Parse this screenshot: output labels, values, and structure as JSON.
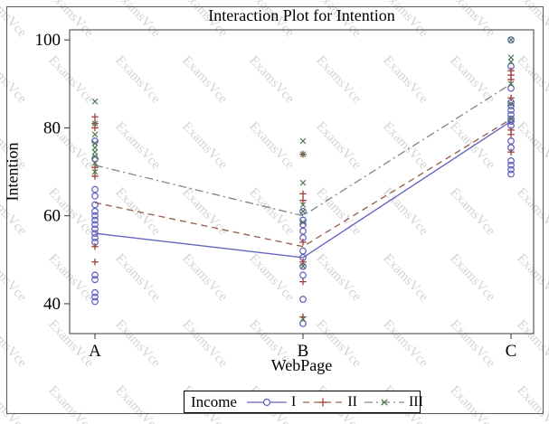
{
  "watermark": {
    "text": "ExamsVce",
    "color": "#c9c9c9"
  },
  "chart_data": {
    "type": "line",
    "title": "Interaction Plot for Intention",
    "xlabel": "WebPage",
    "ylabel": "Intention",
    "categories": [
      "A",
      "B",
      "C"
    ],
    "yticks": [
      100,
      80,
      60,
      40
    ],
    "ylim": [
      33.2,
      102.3
    ],
    "grid": false,
    "legend": {
      "title": "Income",
      "position": "bottom"
    },
    "series": [
      {
        "name": "I",
        "marker": "circle",
        "line": "solid",
        "line_color": "#6565c2",
        "marker_color": "#5c5cbe",
        "means": [
          56,
          50.5,
          81.5
        ],
        "points": [
          [
            77,
            73,
            66,
            64.5,
            62.5,
            61,
            60,
            59,
            58,
            57,
            56,
            55,
            54,
            46.5,
            45.5,
            42.5,
            41.5,
            40.5
          ],
          [
            61,
            59,
            58,
            56.5,
            55,
            52,
            50.5,
            48.5,
            46.5,
            41,
            35.5
          ],
          [
            100,
            94,
            89,
            85.8,
            85,
            84,
            83,
            82,
            81.5,
            80.5,
            77,
            75.5,
            72.5,
            71.5,
            70.5,
            69.5
          ]
        ]
      },
      {
        "name": "II",
        "marker": "plus",
        "line": "dash",
        "line_color": "#96604d",
        "marker_color": "#9e3f3a",
        "means": [
          63,
          53,
          82
        ],
        "points": [
          [
            82.5,
            81,
            80,
            71,
            69,
            53,
            49.5
          ],
          [
            74,
            65,
            63.5,
            54,
            49.5,
            45,
            37
          ],
          [
            93,
            92,
            91,
            86.8,
            79.5,
            78.5,
            74.5
          ]
        ]
      },
      {
        "name": "III",
        "marker": "x",
        "line": "dashdot",
        "line_color": "#7a8f7c",
        "marker_color": "#4f7a52",
        "means": [
          71.5,
          60,
          90
        ],
        "points": [
          [
            86,
            81,
            78.5,
            76.5,
            75.5,
            74.5,
            73.5,
            72,
            70
          ],
          [
            77,
            74,
            67.5,
            62.5,
            61,
            58.5,
            48.5,
            36.5
          ],
          [
            100,
            96,
            95,
            90,
            85.5,
            82
          ]
        ]
      }
    ]
  }
}
